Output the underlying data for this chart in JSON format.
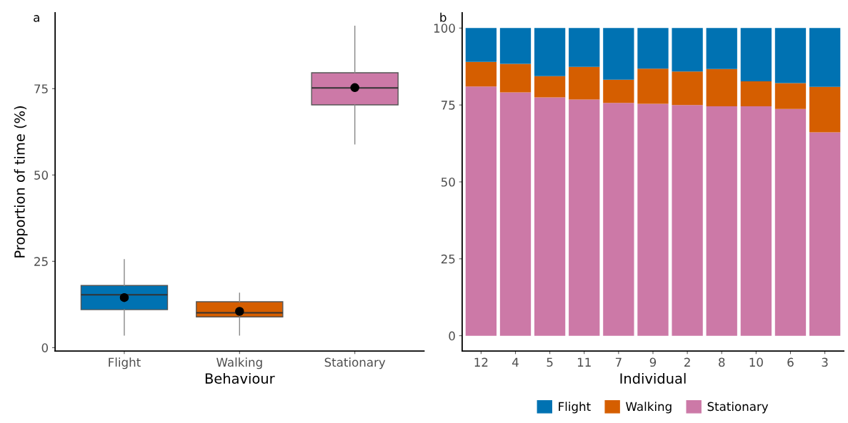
{
  "chart_data": [
    {
      "type": "box",
      "title": "a",
      "xlabel": "Behaviour",
      "ylabel": "Proportion of time (%)",
      "categories": [
        "Flight",
        "Walking",
        "Stationary"
      ],
      "colors": [
        "#0072b2",
        "#d55e00",
        "#cc79a7"
      ],
      "boxes": [
        {
          "low": 3.6,
          "q1": 11.0,
          "median": 15.3,
          "q3": 18.0,
          "high": 25.5,
          "mean": 14.5
        },
        {
          "low": 3.6,
          "q1": 8.9,
          "median": 10.1,
          "q3": 13.3,
          "high": 15.8,
          "mean": 10.5
        },
        {
          "low": 59.0,
          "q1": 70.3,
          "median": 75.2,
          "q3": 79.6,
          "high": 93.1,
          "mean": 75.3
        }
      ],
      "ylim": [
        -1,
        97
      ],
      "yticks": [
        0,
        25,
        50,
        75
      ],
      "grid": false
    },
    {
      "type": "bar",
      "title": "b",
      "xlabel": "Individual",
      "categories": [
        "12",
        "4",
        "5",
        "11",
        "7",
        "9",
        "2",
        "8",
        "10",
        "6",
        "3"
      ],
      "stacked": true,
      "series": [
        {
          "name": "Stationary",
          "color": "#cc79a7",
          "values": [
            81.0,
            79.1,
            77.5,
            76.8,
            75.7,
            75.4,
            75.0,
            74.6,
            74.6,
            73.7,
            66.1
          ]
        },
        {
          "name": "Walking",
          "color": "#d55e00",
          "values": [
            8.0,
            9.3,
            6.9,
            10.6,
            7.5,
            11.4,
            10.9,
            12.1,
            8.1,
            8.4,
            14.8
          ]
        },
        {
          "name": "Flight",
          "color": "#0072b2",
          "values": [
            11.0,
            11.6,
            15.6,
            12.6,
            16.8,
            13.2,
            14.1,
            13.3,
            17.3,
            17.9,
            19.1
          ]
        }
      ],
      "ylim": [
        -5,
        105
      ],
      "yticks": [
        0,
        25,
        50,
        75,
        100
      ],
      "grid": false,
      "legend": "bottom"
    }
  ]
}
